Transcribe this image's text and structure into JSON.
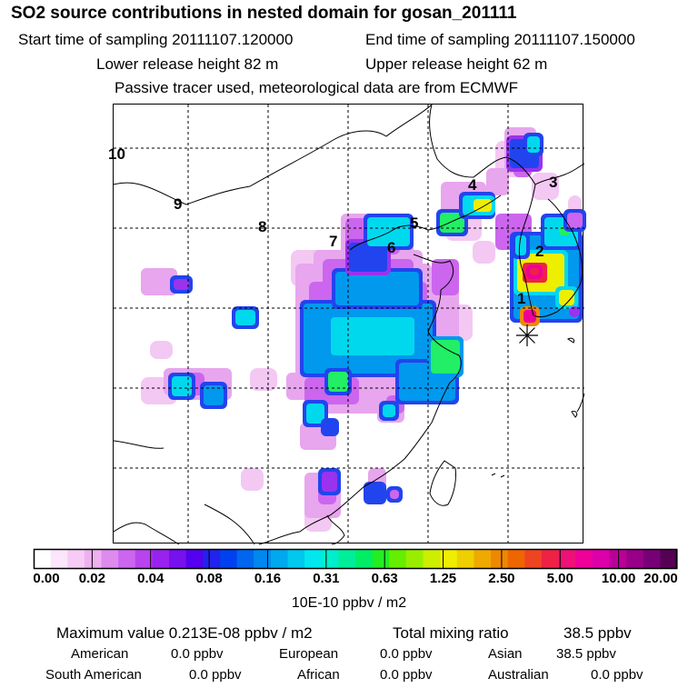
{
  "header": {
    "title": "SO2 source contributions in nested domain for gosan_201111",
    "start_label": "Start time of sampling 20111107.120000",
    "end_label": "End time of sampling 20111107.150000",
    "lower_label": "Lower release height   82 m",
    "upper_label": "Upper release height   62 m",
    "tracer_label": "Passive tracer used, meteorological data are from ECMWF"
  },
  "chart_data": {
    "type": "heatmap",
    "title": "SO2 source contributions in nested domain for gosan_201111",
    "colorbar": {
      "tick_labels": [
        "0.00",
        "0.02",
        "0.04",
        "0.08",
        "0.16",
        "0.31",
        "0.63",
        "1.25",
        "2.50",
        "5.00",
        "10.00",
        "20.00"
      ],
      "units": "10E-10 ppbv / m2",
      "colors": [
        "#ffffff",
        "#fbe6fb",
        "#f6ccf6",
        "#efb0ef",
        "#dd8cee",
        "#cc66ee",
        "#b844ee",
        "#9922ee",
        "#7711ee",
        "#5500ee",
        "#2222ee",
        "#0040ee",
        "#0066ee",
        "#0088ee",
        "#00a8ee",
        "#00c8ee",
        "#00e8ee",
        "#00eecc",
        "#00ee99",
        "#00ee66",
        "#22ee22",
        "#66ee00",
        "#99ee00",
        "#ccee00",
        "#eeee00",
        "#eed000",
        "#eeaa00",
        "#ee8800",
        "#ee6600",
        "#ee4422",
        "#ee2244",
        "#ee1177",
        "#ee0099",
        "#dd00aa",
        "#bb0099",
        "#990088",
        "#770077",
        "#550055"
      ]
    },
    "map_labels": [
      "10",
      "9",
      "8",
      "7",
      "6",
      "5",
      "4",
      "3",
      "2",
      "1"
    ],
    "receptor": "gosan"
  },
  "footer": {
    "max_label": "Maximum value  0.213E-08 ppbv / m2",
    "total_label": "Total mixing ratio",
    "total_value": "38.5 ppbv",
    "regions": [
      {
        "name": "American",
        "value": "0.0 ppbv"
      },
      {
        "name": "European",
        "value": "0.0 ppbv"
      },
      {
        "name": "Asian",
        "value": "38.5 ppbv"
      },
      {
        "name": "South American",
        "value": "0.0 ppbv"
      },
      {
        "name": "African",
        "value": "0.0 ppbv"
      },
      {
        "name": "Australian",
        "value": "0.0 ppbv"
      }
    ]
  }
}
